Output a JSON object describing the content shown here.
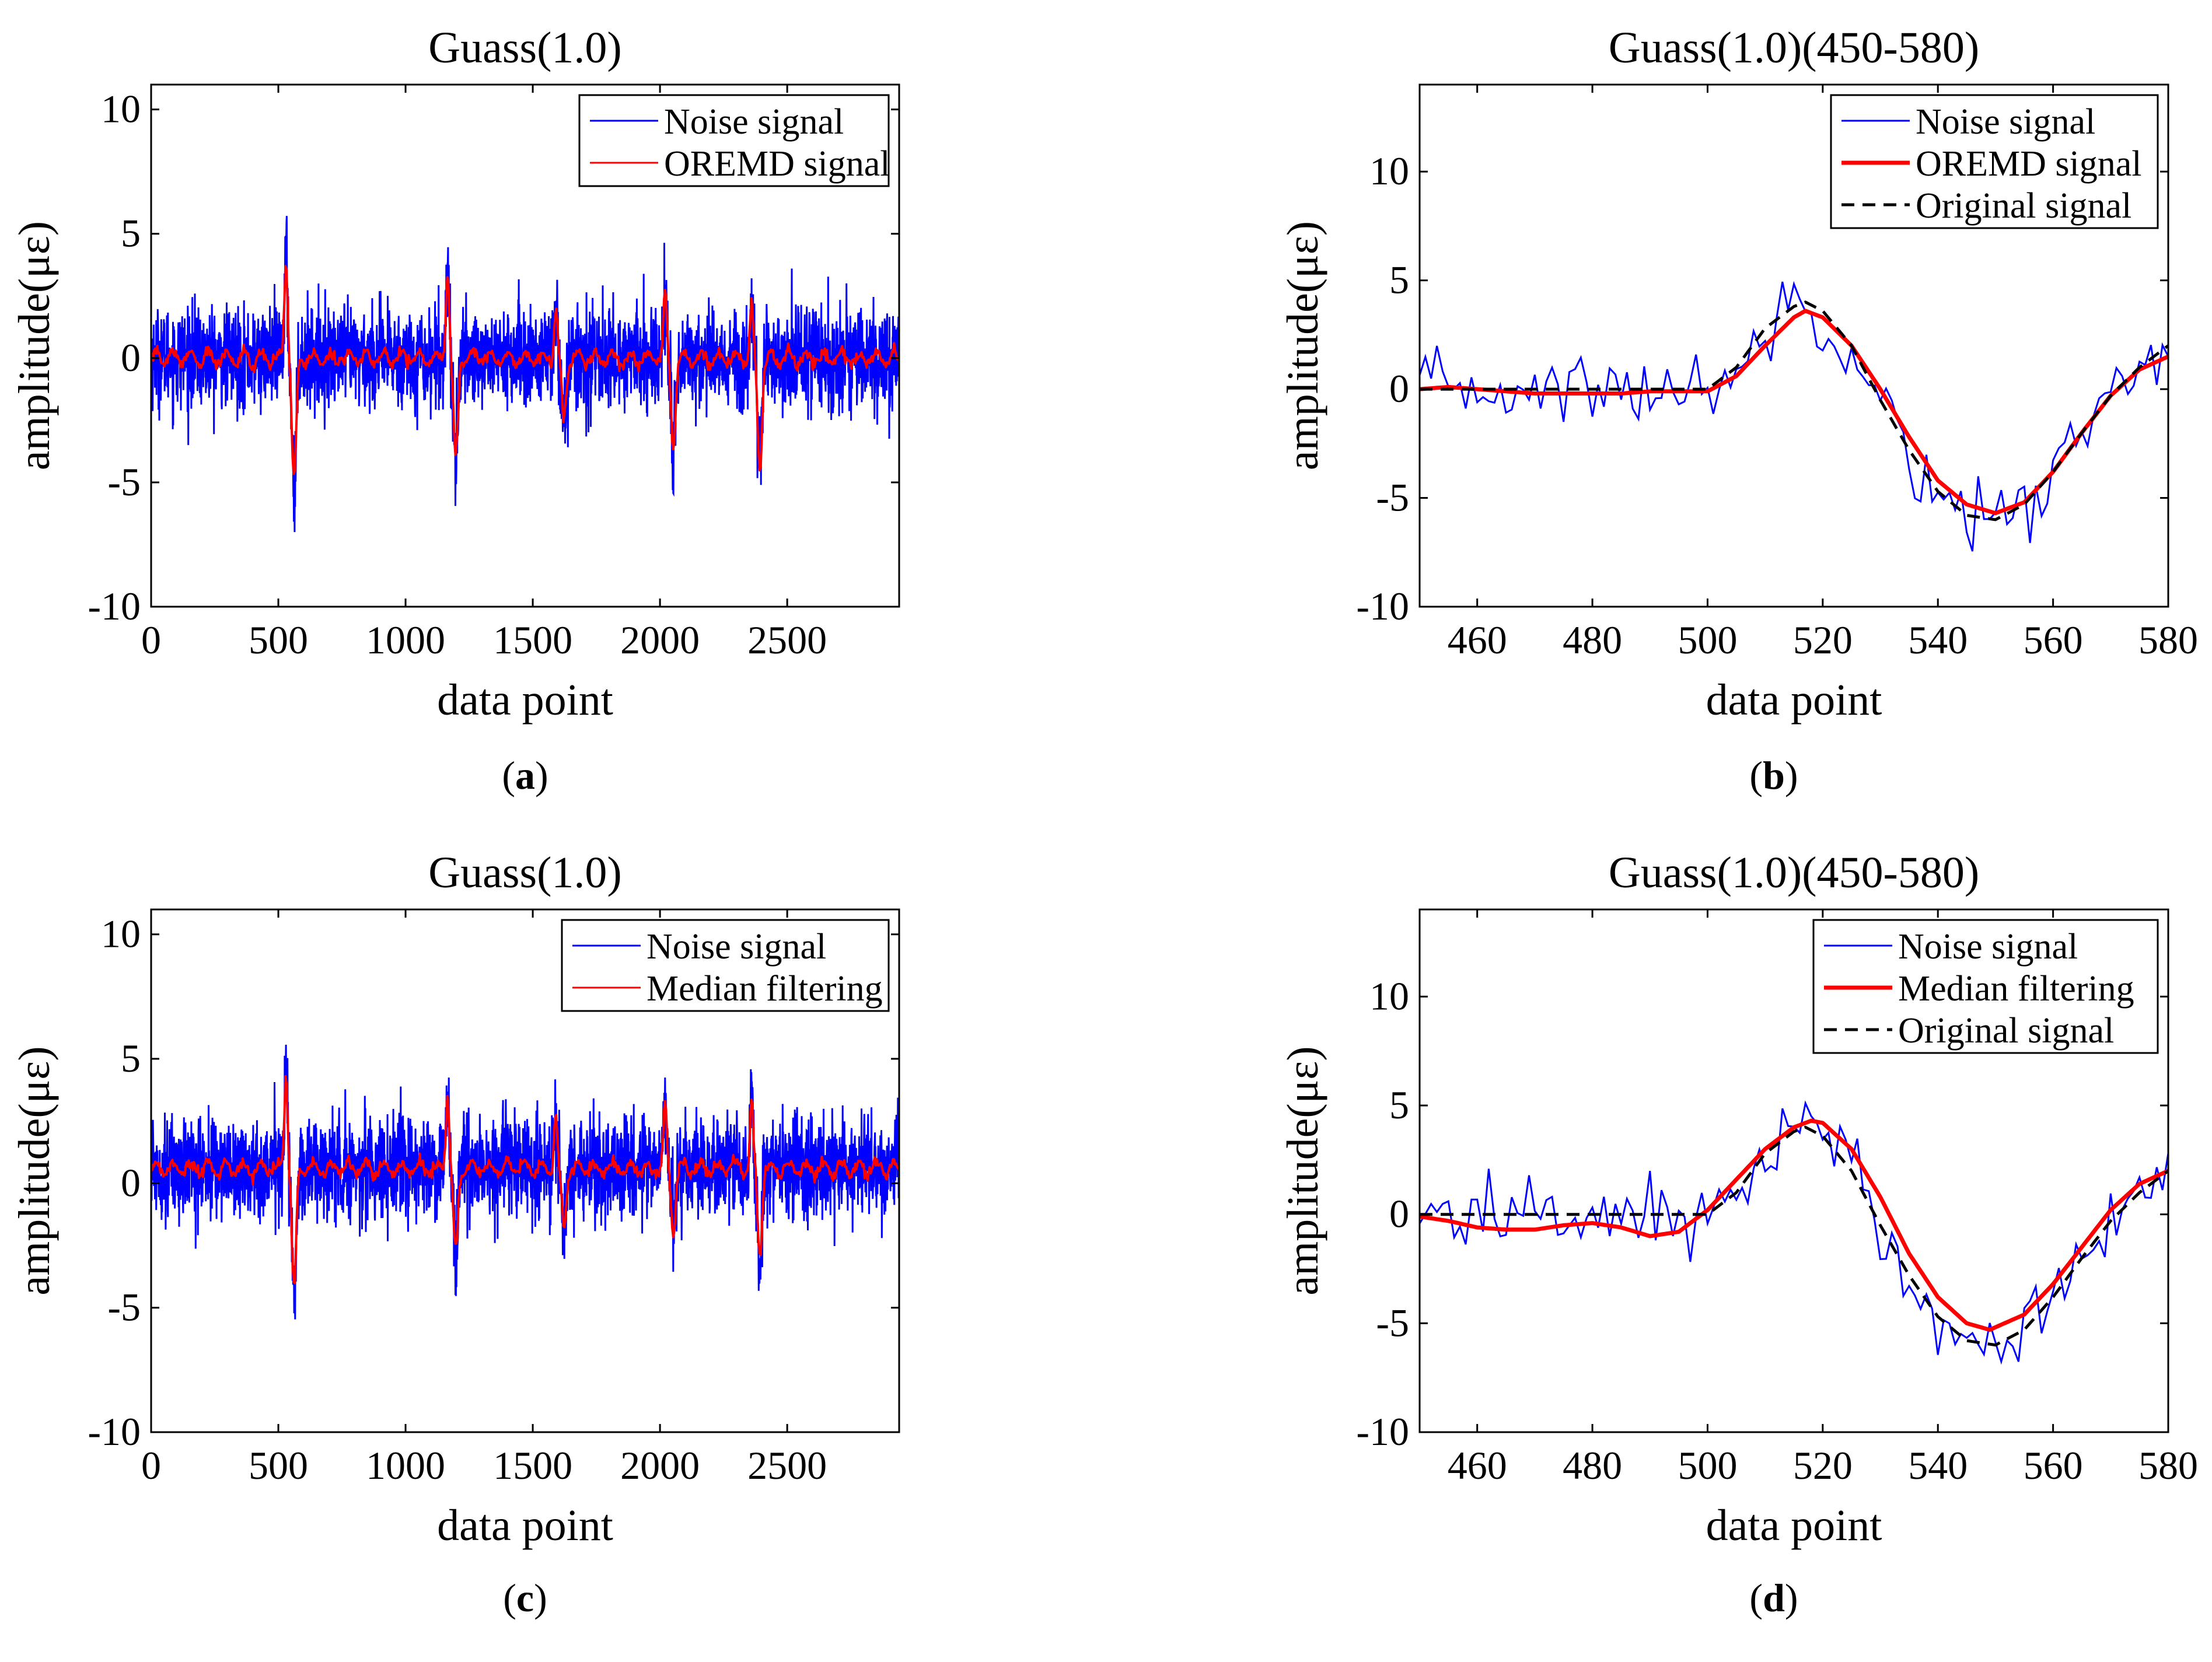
{
  "figure": {
    "captions": [
      "a",
      "b",
      "c",
      "d"
    ]
  },
  "chart_data": [
    {
      "id": "a",
      "type": "line",
      "title": "Guass(1.0)",
      "xlabel": "data point",
      "ylabel": "amplitude(με)",
      "xlim": [
        0,
        2940
      ],
      "ylim": [
        -10,
        11
      ],
      "xticks": [
        0,
        500,
        1000,
        1500,
        2000,
        2500
      ],
      "yticks": [
        -10,
        -5,
        0,
        5,
        10
      ],
      "legend_position": "top-right",
      "noise_std": 1.0,
      "series": [
        {
          "name": "Noise signal",
          "color": "#0000ff",
          "style": "solid",
          "weight": "thin"
        },
        {
          "name": "OREMD signal",
          "color": "#ff0000",
          "style": "solid",
          "weight": "thin"
        }
      ],
      "events": [
        {
          "center": 540,
          "peak": 4.0,
          "trough": -5.0
        },
        {
          "center": 1175,
          "peak": 3.5,
          "trough": -4.0
        },
        {
          "center": 1600,
          "peak": 2.0,
          "trough": -2.5
        },
        {
          "center": 2030,
          "peak": 2.5,
          "trough": -3.5
        },
        {
          "center": 2370,
          "peak": 2.0,
          "trough": -4.5
        }
      ]
    },
    {
      "id": "b",
      "type": "line",
      "title": "Guass(1.0)(450-580)",
      "xlabel": "data point",
      "ylabel": "amplitude(με)",
      "xlim": [
        450,
        580
      ],
      "ylim": [
        -10,
        14
      ],
      "xticks": [
        460,
        480,
        500,
        520,
        540,
        560,
        580
      ],
      "yticks": [
        -10,
        -5,
        0,
        5,
        10
      ],
      "legend_position": "top-right",
      "series": [
        {
          "name": "Noise signal",
          "color": "#0000ff",
          "style": "solid",
          "weight": "thin"
        },
        {
          "name": "OREMD signal",
          "color": "#ff0000",
          "style": "solid",
          "weight": "thick"
        },
        {
          "name": "Original signal",
          "color": "#000000",
          "style": "dashed",
          "weight": "medium"
        }
      ],
      "original_signal": {
        "x": [
          450,
          500,
          505,
          510,
          515,
          517,
          520,
          525,
          530,
          535,
          540,
          545,
          550,
          555,
          560,
          565,
          570,
          575,
          580
        ],
        "y": [
          0,
          0,
          1.0,
          2.8,
          3.8,
          4.0,
          3.6,
          2.0,
          -0.5,
          -2.8,
          -4.7,
          -5.8,
          -6.0,
          -5.3,
          -3.8,
          -2.0,
          -0.3,
          1.0,
          2.0
        ]
      },
      "filtered_signal": {
        "x": [
          450,
          455,
          460,
          465,
          470,
          475,
          480,
          485,
          490,
          495,
          500,
          505,
          510,
          515,
          517,
          520,
          525,
          530,
          535,
          540,
          545,
          550,
          555,
          560,
          565,
          570,
          575,
          580
        ],
        "y": [
          0,
          0.1,
          0.0,
          -0.1,
          -0.2,
          -0.2,
          -0.2,
          -0.2,
          -0.1,
          -0.1,
          -0.1,
          0.6,
          2.0,
          3.3,
          3.6,
          3.3,
          2.0,
          0.0,
          -2.2,
          -4.2,
          -5.3,
          -5.7,
          -5.2,
          -3.8,
          -2.0,
          -0.3,
          0.9,
          1.5
        ]
      }
    },
    {
      "id": "c",
      "type": "line",
      "title": "Guass(1.0)",
      "xlabel": "data point",
      "ylabel": "amplitude(με)",
      "xlim": [
        0,
        2940
      ],
      "ylim": [
        -10,
        11
      ],
      "xticks": [
        0,
        500,
        1000,
        1500,
        2000,
        2500
      ],
      "yticks": [
        -10,
        -5,
        0,
        5,
        10
      ],
      "legend_position": "top-right",
      "noise_std": 1.0,
      "baseline": 0.6,
      "series": [
        {
          "name": "Noise signal",
          "color": "#0000ff",
          "style": "solid",
          "weight": "thin"
        },
        {
          "name": "Median filtering",
          "color": "#ff0000",
          "style": "solid",
          "weight": "thin"
        }
      ],
      "events": [
        {
          "center": 540,
          "peak": 4.0,
          "trough": -5.0
        },
        {
          "center": 1175,
          "peak": 3.0,
          "trough": -3.5
        },
        {
          "center": 1600,
          "peak": 2.0,
          "trough": -2.5
        },
        {
          "center": 2030,
          "peak": 2.5,
          "trough": -2.5
        },
        {
          "center": 2370,
          "peak": 2.5,
          "trough": -3.5
        }
      ]
    },
    {
      "id": "d",
      "type": "line",
      "title": "Guass(1.0)(450-580)",
      "xlabel": "data point",
      "ylabel": "amplitude(με)",
      "xlim": [
        450,
        580
      ],
      "ylim": [
        -10,
        14
      ],
      "xticks": [
        460,
        480,
        500,
        520,
        540,
        560,
        580
      ],
      "yticks": [
        -10,
        -5,
        0,
        5,
        10
      ],
      "legend_position": "top-right",
      "series": [
        {
          "name": "Noise signal",
          "color": "#0000ff",
          "style": "solid",
          "weight": "thin"
        },
        {
          "name": "Median filtering",
          "color": "#ff0000",
          "style": "solid",
          "weight": "thick"
        },
        {
          "name": "Original signal",
          "color": "#000000",
          "style": "dashed",
          "weight": "medium"
        }
      ],
      "original_signal": {
        "x": [
          450,
          500,
          505,
          510,
          515,
          517,
          520,
          525,
          530,
          535,
          540,
          545,
          550,
          555,
          560,
          565,
          570,
          575,
          580
        ],
        "y": [
          0,
          0,
          1.0,
          2.8,
          3.8,
          4.0,
          3.6,
          2.0,
          -0.5,
          -2.8,
          -4.7,
          -5.8,
          -6.0,
          -5.3,
          -3.8,
          -2.0,
          -0.3,
          1.0,
          2.0
        ]
      },
      "filtered_signal": {
        "x": [
          450,
          455,
          460,
          465,
          470,
          475,
          480,
          485,
          490,
          495,
          500,
          505,
          510,
          515,
          518,
          520,
          525,
          530,
          535,
          540,
          545,
          549,
          555,
          560,
          565,
          570,
          575,
          580
        ],
        "y": [
          -0.1,
          -0.3,
          -0.6,
          -0.7,
          -0.7,
          -0.5,
          -0.4,
          -0.6,
          -1.0,
          -0.8,
          0.2,
          1.6,
          3.0,
          4.0,
          4.3,
          4.2,
          3.0,
          0.8,
          -1.8,
          -3.8,
          -5.0,
          -5.3,
          -4.6,
          -3.2,
          -1.5,
          0.2,
          1.4,
          2.0
        ]
      }
    }
  ]
}
